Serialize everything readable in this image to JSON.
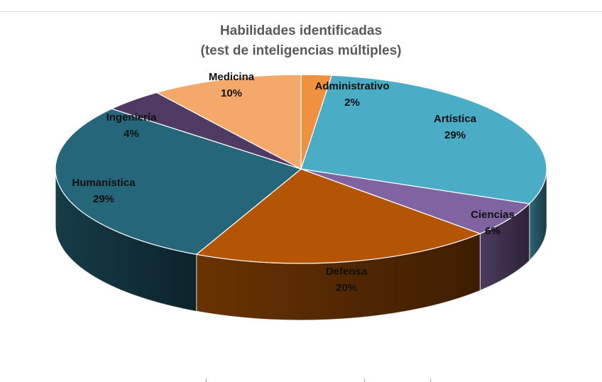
{
  "chart_data": {
    "type": "pie",
    "variant": "3d-pie",
    "title": "Habilidades identificadas",
    "subtitle": "(test de inteligencias múltiples)",
    "categories": [
      "Administrativo",
      "Artística",
      "Ciencias",
      "Defensa",
      "Humanística",
      "Ingeniería",
      "Medicina"
    ],
    "values": [
      2,
      29,
      6,
      20,
      29,
      4,
      10
    ],
    "labels": [
      "2%",
      "29%",
      "6%",
      "20%",
      "29%",
      "4%",
      "10%"
    ],
    "colors": [
      "#f0913f",
      "#4bacc6",
      "#8064a2",
      "#b35504",
      "#25667a",
      "#4f3a63",
      "#f4a96b"
    ],
    "legend": "none (data labels on slices)"
  },
  "header": {
    "title_line1": "Habilidades identificadas",
    "title_line2": "(test de inteligencias múltiples)"
  },
  "slices": [
    {
      "name": "Administrativo",
      "pct": "2%"
    },
    {
      "name": "Artística",
      "pct": "29%"
    },
    {
      "name": "Ciencias",
      "pct": "6%"
    },
    {
      "name": "Defensa",
      "pct": "20%"
    },
    {
      "name": "Humanística",
      "pct": "29%"
    },
    {
      "name": "Ingeniería",
      "pct": "4%"
    },
    {
      "name": "Medicina",
      "pct": "10%"
    }
  ]
}
